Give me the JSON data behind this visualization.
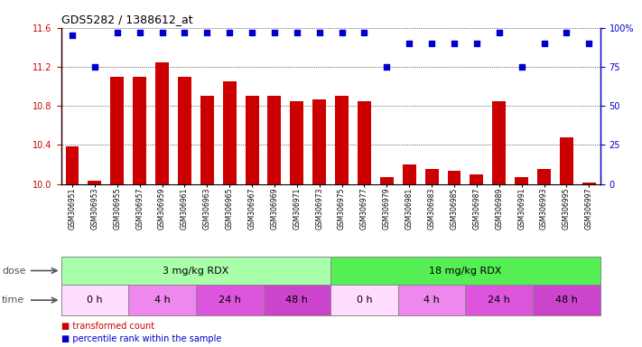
{
  "title": "GDS5282 / 1388612_at",
  "samples": [
    "GSM306951",
    "GSM306953",
    "GSM306955",
    "GSM306957",
    "GSM306959",
    "GSM306961",
    "GSM306963",
    "GSM306965",
    "GSM306967",
    "GSM306969",
    "GSM306971",
    "GSM306973",
    "GSM306975",
    "GSM306977",
    "GSM306979",
    "GSM306981",
    "GSM306983",
    "GSM306985",
    "GSM306987",
    "GSM306989",
    "GSM306991",
    "GSM306993",
    "GSM306995",
    "GSM306997"
  ],
  "transformed_count": [
    10.38,
    10.03,
    11.1,
    11.1,
    11.25,
    11.1,
    10.9,
    11.05,
    10.9,
    10.9,
    10.85,
    10.87,
    10.9,
    10.85,
    10.07,
    10.2,
    10.15,
    10.13,
    10.1,
    10.85,
    10.07,
    10.15,
    10.48,
    10.01
  ],
  "percentile_rank": [
    95,
    75,
    97,
    97,
    97,
    97,
    97,
    97,
    97,
    97,
    97,
    97,
    97,
    97,
    75,
    90,
    90,
    90,
    90,
    97,
    75,
    90,
    97,
    90
  ],
  "ylim_left": [
    10.0,
    11.6
  ],
  "ylim_right": [
    0,
    100
  ],
  "yticks_left": [
    10.0,
    10.4,
    10.8,
    11.2,
    11.6
  ],
  "yticks_right": [
    0,
    25,
    50,
    75,
    100
  ],
  "bar_color": "#cc0000",
  "dot_color": "#0000cc",
  "background_color": "#ffffff",
  "plot_bg": "#eeeeee",
  "dose_groups": [
    {
      "label": "3 mg/kg RDX",
      "start": 0,
      "end": 12,
      "color": "#aaffaa"
    },
    {
      "label": "18 mg/kg RDX",
      "start": 12,
      "end": 24,
      "color": "#55ee55"
    }
  ],
  "time_groups": [
    {
      "label": "0 h",
      "start": 0,
      "end": 3,
      "color": "#ffddff"
    },
    {
      "label": "4 h",
      "start": 3,
      "end": 6,
      "color": "#ee88ee"
    },
    {
      "label": "24 h",
      "start": 6,
      "end": 9,
      "color": "#dd55dd"
    },
    {
      "label": "48 h",
      "start": 9,
      "end": 12,
      "color": "#cc44cc"
    },
    {
      "label": "0 h",
      "start": 12,
      "end": 15,
      "color": "#ffddff"
    },
    {
      "label": "4 h",
      "start": 15,
      "end": 18,
      "color": "#ee88ee"
    },
    {
      "label": "24 h",
      "start": 18,
      "end": 21,
      "color": "#dd55dd"
    },
    {
      "label": "48 h",
      "start": 21,
      "end": 24,
      "color": "#cc44cc"
    }
  ],
  "legend_items": [
    {
      "label": "transformed count",
      "color": "#cc0000",
      "marker": "s"
    },
    {
      "label": "percentile rank within the sample",
      "color": "#0000cc",
      "marker": "s"
    }
  ]
}
